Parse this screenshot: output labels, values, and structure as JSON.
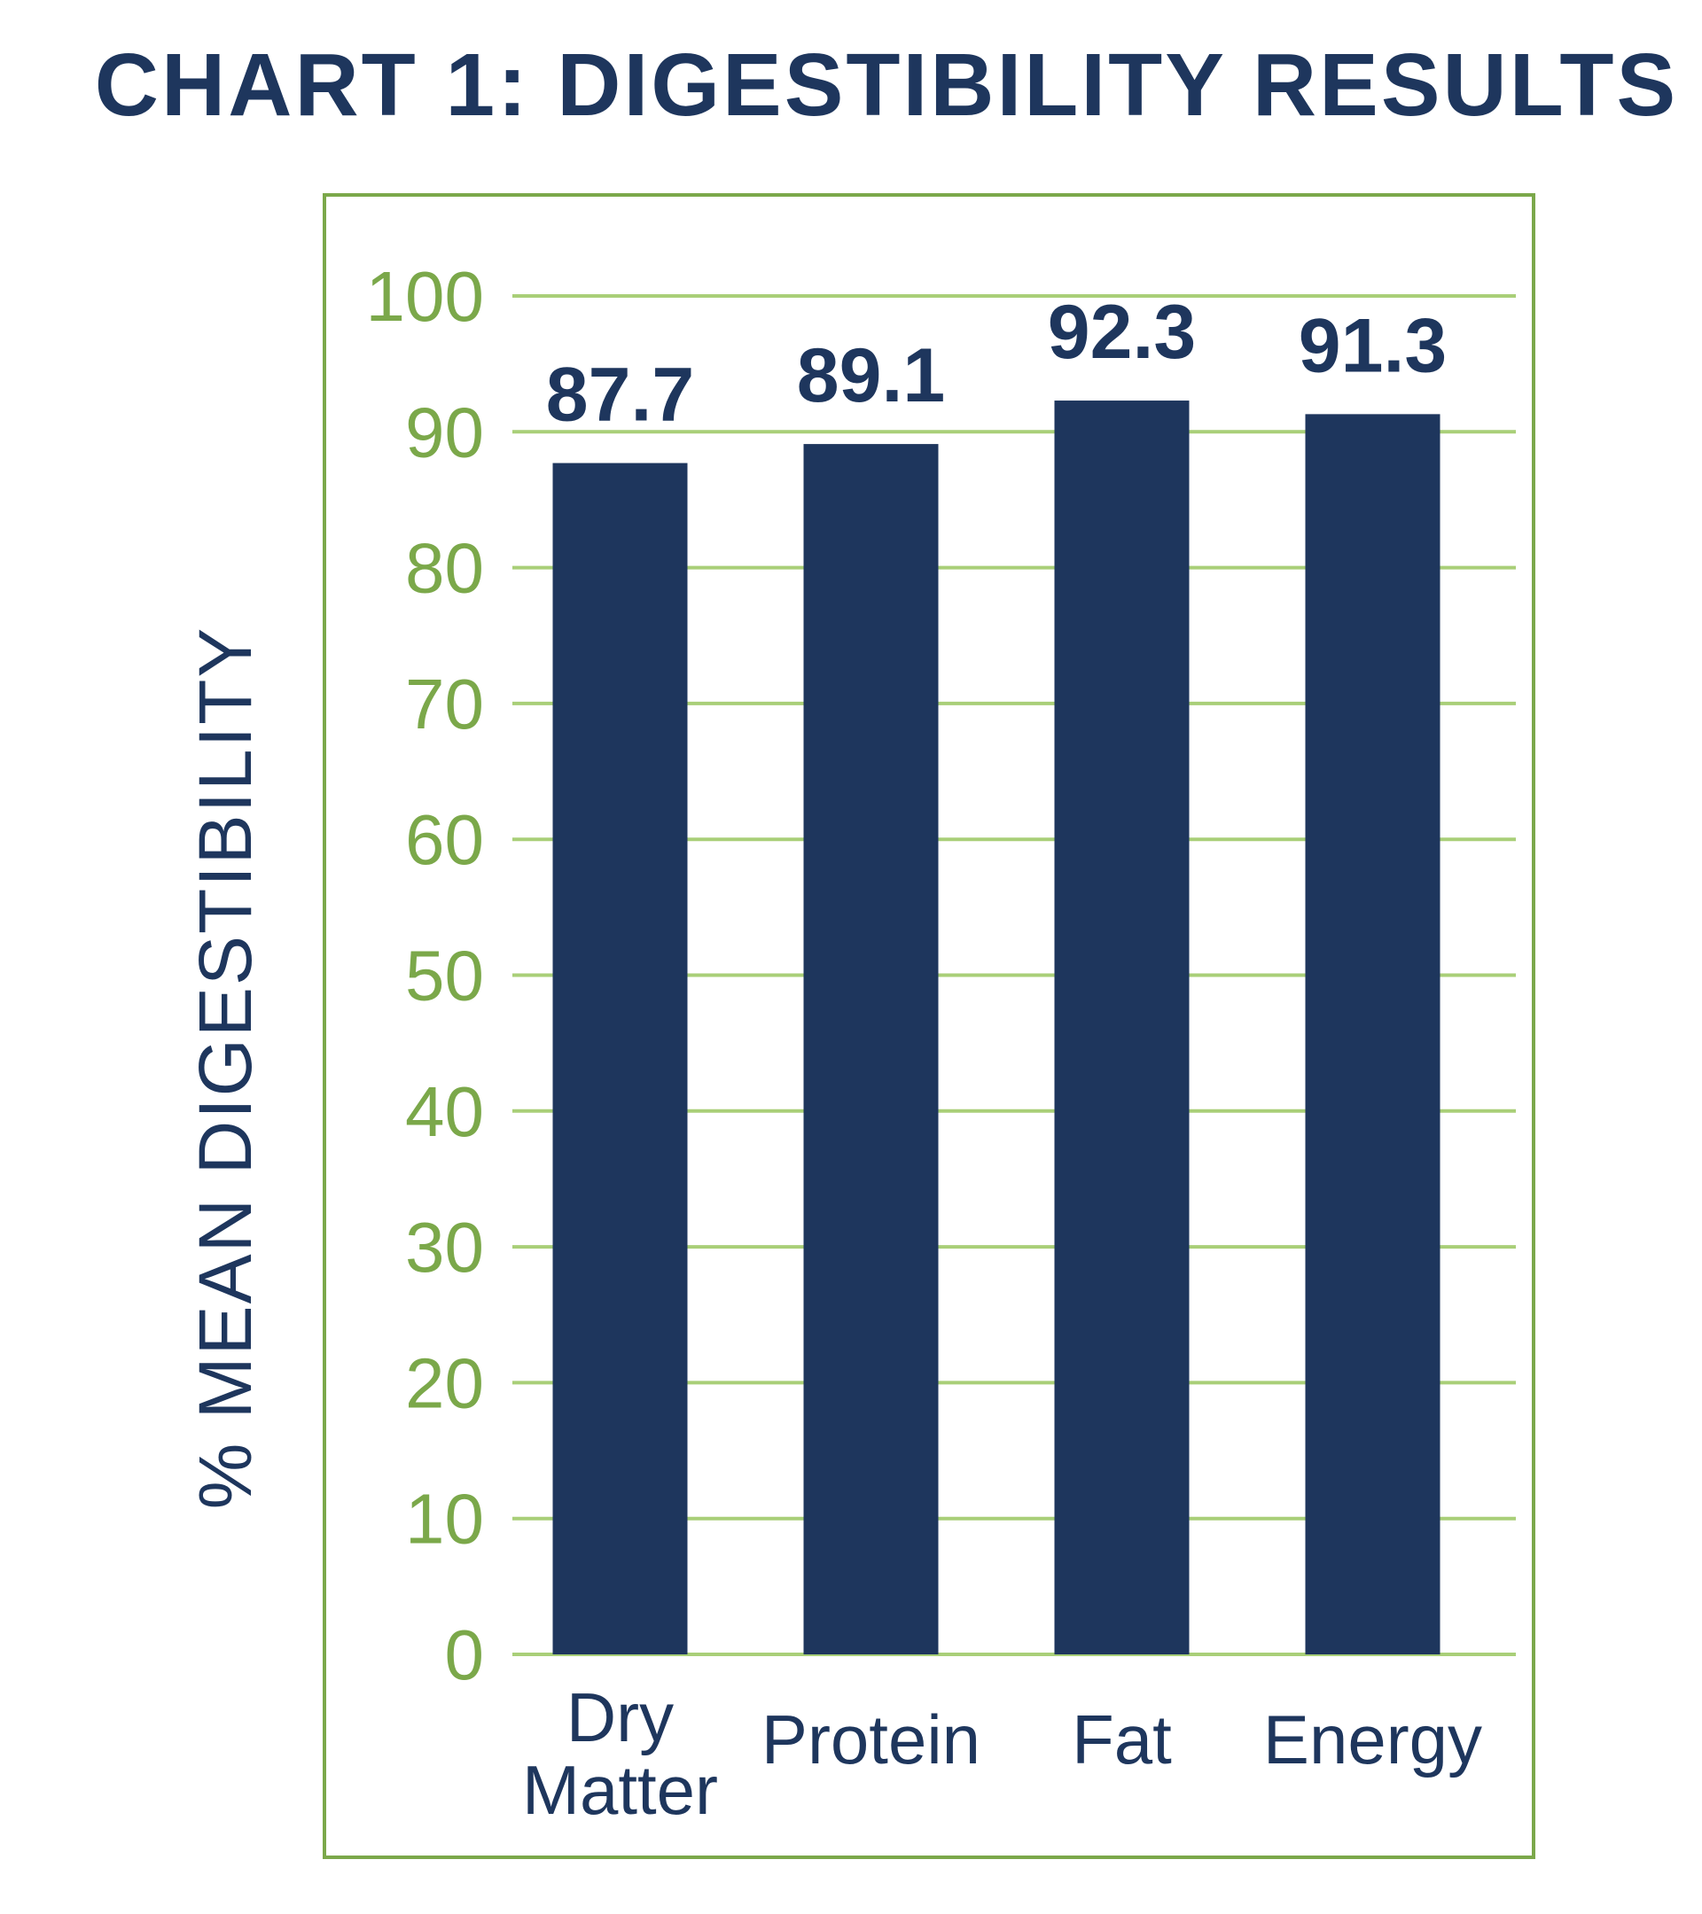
{
  "chart_data": {
    "type": "bar",
    "title": "CHART 1: DIGESTIBILITY RESULTS",
    "xlabel": "",
    "ylabel": "% MEAN DIGESTIBILITY",
    "categories": [
      "Dry Matter",
      "Protein",
      "Fat",
      "Energy"
    ],
    "values": [
      87.7,
      89.1,
      92.3,
      91.3
    ],
    "value_labels": [
      "87.7",
      "89.1",
      "92.3",
      "91.3"
    ],
    "ylim": [
      0,
      100
    ],
    "yticks": [
      0,
      10,
      20,
      30,
      40,
      50,
      60,
      70,
      80,
      90,
      100
    ],
    "grid": true,
    "colors": {
      "bar": "#1e365d",
      "title": "#1e365d",
      "axis_accent": "#7ba84a",
      "gridline": "#a9cf78",
      "frame": "#7ba84a"
    }
  }
}
